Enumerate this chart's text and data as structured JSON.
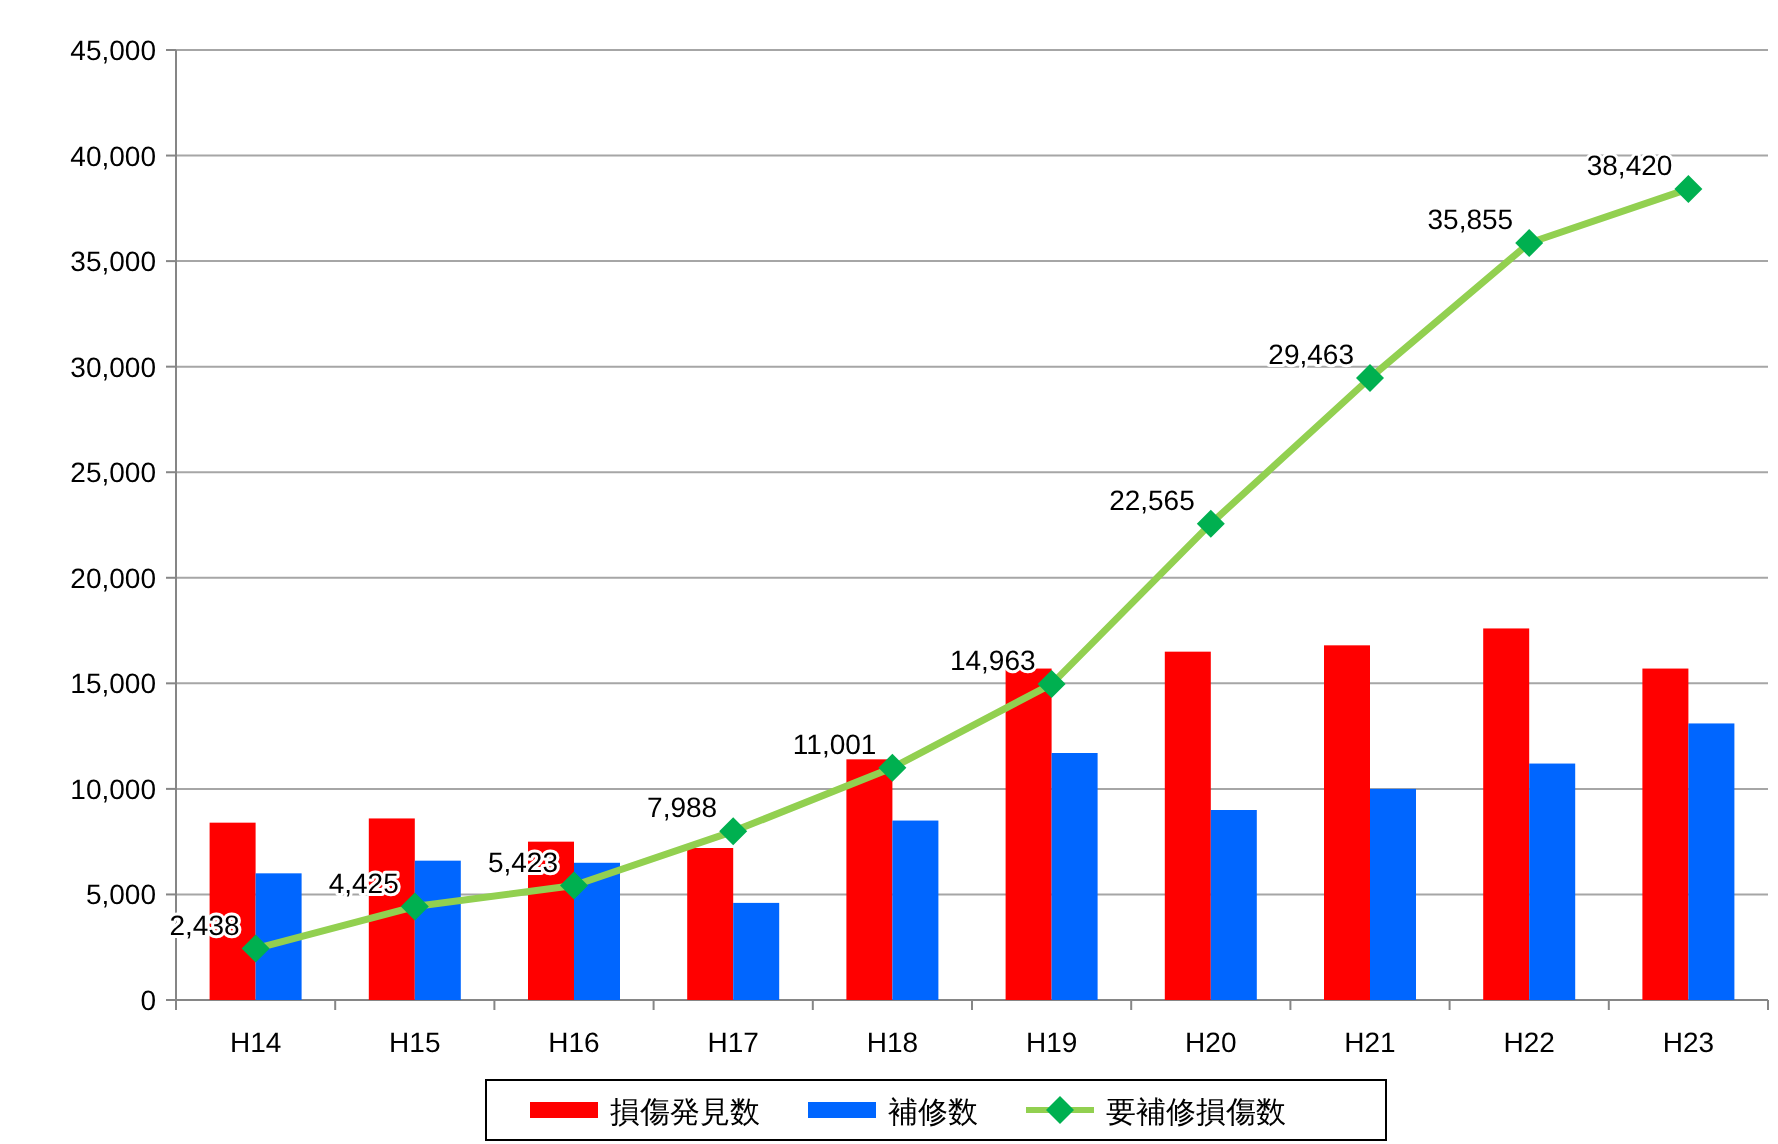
{
  "chart_data": {
    "type": "bar",
    "categories": [
      "H14",
      "H15",
      "H16",
      "H17",
      "H18",
      "H19",
      "H20",
      "H21",
      "H22",
      "H23"
    ],
    "series": [
      {
        "name": "損傷発見数",
        "color": "#ff0000",
        "values": [
          8400,
          8600,
          7500,
          7200,
          11400,
          15700,
          16500,
          16800,
          17600,
          15700
        ]
      },
      {
        "name": "補修数",
        "color": "#0066ff",
        "values": [
          6000,
          6600,
          6500,
          4600,
          8500,
          11700,
          9000,
          10000,
          11200,
          13100
        ]
      },
      {
        "name": "要補修損傷数",
        "type": "line",
        "color": "#92d050",
        "marker": "diamond",
        "values": [
          2438,
          4425,
          5423,
          7988,
          11001,
          14963,
          22565,
          29463,
          35855,
          38420
        ],
        "value_labels": [
          "2,438",
          "4,425",
          "5,423",
          "7,988",
          "11,001",
          "14,963",
          "22,565",
          "29,463",
          "35,855",
          "38,420"
        ]
      }
    ],
    "ylim": [
      0,
      45000
    ],
    "yticks": [
      {
        "value": 0,
        "label": "0"
      },
      {
        "value": 5000,
        "label": "5,000"
      },
      {
        "value": 10000,
        "label": "10,000"
      },
      {
        "value": 15000,
        "label": "15,000"
      },
      {
        "value": 20000,
        "label": "20,000"
      },
      {
        "value": 25000,
        "label": "25,000"
      },
      {
        "value": 30000,
        "label": "30,000"
      },
      {
        "value": 35000,
        "label": "35,000"
      },
      {
        "value": 40000,
        "label": "40,000"
      },
      {
        "value": 45000,
        "label": "45,000"
      }
    ],
    "grid": "y",
    "legend": "bottom"
  }
}
